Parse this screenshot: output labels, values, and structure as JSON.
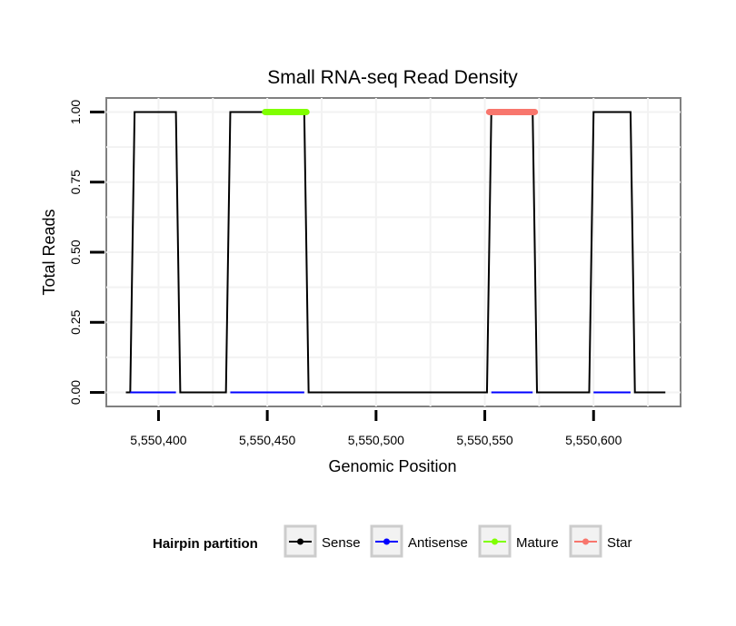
{
  "chart_data": {
    "type": "line",
    "title": "Small RNA-seq Read Density",
    "xlabel": "Genomic Position",
    "ylabel": "Total Reads",
    "xlim": [
      5550376,
      5550640
    ],
    "ylim": [
      -0.05,
      1.05
    ],
    "x_ticks": [
      5550400,
      5550450,
      5550500,
      5550550,
      5550600
    ],
    "x_tick_labels": [
      "5,550,400",
      "5,550,450",
      "5,550,500",
      "5,550,550",
      "5,550,600"
    ],
    "y_ticks": [
      0,
      0.25,
      0.5,
      0.75,
      1
    ],
    "y_tick_labels": [
      "0.00",
      "0.25",
      "0.50",
      "0.75",
      "1.00"
    ],
    "grid": true,
    "legend_title": "Hairpin partition",
    "legend_position": "bottom",
    "series": [
      {
        "name": "Sense",
        "color": "#000000",
        "x": [
          5550385,
          5550387,
          5550389,
          5550408,
          5550410,
          5550431,
          5550433,
          5550467,
          5550469,
          5550551,
          5550553,
          5550572,
          5550574,
          5550598,
          5550600,
          5550617,
          5550619,
          5550633
        ],
        "values": [
          0,
          0,
          1,
          1,
          0,
          0,
          1,
          1,
          0,
          0,
          1,
          1,
          0,
          0,
          1,
          1,
          0,
          0
        ]
      },
      {
        "name": "Antisense",
        "color": "#0000ff",
        "x": [
          5550387,
          5550408,
          5550433,
          5550467,
          5550553,
          5550572,
          5550600,
          5550617
        ],
        "values": [
          0,
          0,
          0,
          0,
          0,
          0,
          0,
          0
        ]
      },
      {
        "name": "Mature",
        "color": "#80ff00",
        "x": [
          5550449,
          5550468
        ],
        "values": [
          1,
          1
        ]
      },
      {
        "name": "Star",
        "color": "#f8766d",
        "x": [
          5550552,
          5550573
        ],
        "values": [
          1,
          1
        ]
      }
    ]
  }
}
